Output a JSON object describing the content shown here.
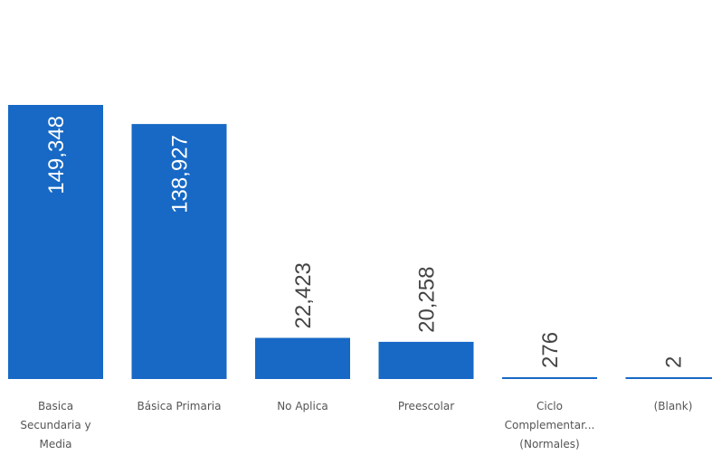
{
  "chart_data": {
    "type": "bar",
    "categories": [
      [
        "Basica",
        "Secundaria y",
        "Media"
      ],
      [
        "Básica Primaria"
      ],
      [
        "No Aplica"
      ],
      [
        "Preescolar"
      ],
      [
        "Ciclo",
        "Complementar...",
        "(Normales)"
      ],
      [
        "(Blank)"
      ]
    ],
    "values": [
      149348,
      138927,
      22423,
      20258,
      276,
      2
    ],
    "value_labels": [
      "149,348",
      "138,927",
      "22,423",
      "20,258",
      "276",
      "2"
    ],
    "title": "",
    "xlabel": "",
    "ylabel": "",
    "ylim": [
      0,
      149348
    ],
    "grid": false,
    "legend": "none",
    "colors": {
      "bar": "#1769c5",
      "label_outside": "#444444",
      "label_inside": "#ffffff"
    }
  }
}
